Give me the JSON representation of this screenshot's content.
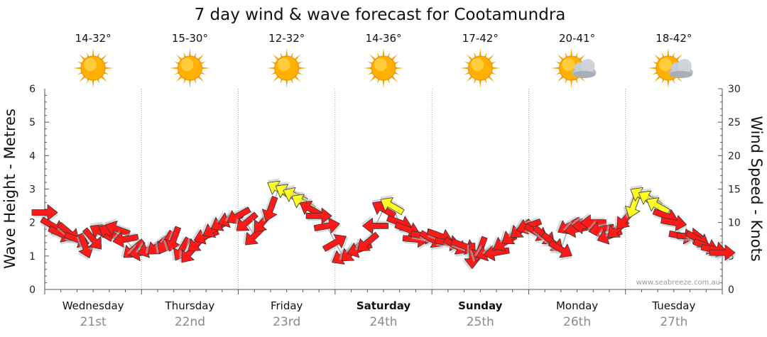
{
  "chart_data": {
    "type": "arrow-forecast",
    "title": "7 day wind & wave forecast for Cootamundra",
    "ylabel_left": "Wave Height - Metres",
    "ylabel_right": "Wind Speed - Knots",
    "ylim_left": [
      0,
      6
    ],
    "ylim_right": [
      0,
      30
    ],
    "left_ticks": [
      "0",
      "1",
      "2",
      "3",
      "4",
      "5",
      "6"
    ],
    "right_ticks": [
      "0",
      "5",
      "10",
      "15",
      "20",
      "25",
      "30"
    ],
    "credit": "www.seabreeze.com.au",
    "colors": {
      "wind": "#ff1a1a",
      "strong_wind": "#ffff26",
      "outline": "#333333",
      "grid": "#999999"
    },
    "days": [
      {
        "name": "Wednesday",
        "date": "21st",
        "temp": "14-32°",
        "weather": "sunny",
        "bold": false
      },
      {
        "name": "Thursday",
        "date": "22nd",
        "temp": "15-30°",
        "weather": "sunny",
        "bold": false
      },
      {
        "name": "Friday",
        "date": "23rd",
        "temp": "12-32°",
        "weather": "sunny",
        "bold": false
      },
      {
        "name": "Saturday",
        "date": "24th",
        "temp": "14-36°",
        "weather": "sunny",
        "bold": true
      },
      {
        "name": "Sunday",
        "date": "25th",
        "temp": "17-42°",
        "weather": "sunny",
        "bold": true
      },
      {
        "name": "Monday",
        "date": "26th",
        "temp": "20-41°",
        "weather": "partly-cloudy",
        "bold": false
      },
      {
        "name": "Tuesday",
        "date": "27th",
        "temp": "18-42°",
        "weather": "partly-cloudy",
        "bold": false
      }
    ],
    "wind": [
      {
        "t": 0.0,
        "s": 11.5,
        "d": 90
      },
      {
        "t": 0.5,
        "s": 9.5,
        "d": 120
      },
      {
        "t": 1.0,
        "s": 8.3,
        "d": 115
      },
      {
        "t": 1.5,
        "s": 8.5,
        "d": 130
      },
      {
        "t": 2.0,
        "s": 7.5,
        "d": 110
      },
      {
        "t": 2.5,
        "s": 6.5,
        "d": 160
      },
      {
        "t": 3.0,
        "s": 7.5,
        "d": 140
      },
      {
        "t": 3.5,
        "s": 8.5,
        "d": 300
      },
      {
        "t": 4.0,
        "s": 8.5,
        "d": 300
      },
      {
        "t": 4.5,
        "s": 9.0,
        "d": 290
      },
      {
        "t": 5.0,
        "s": 7.5,
        "d": 260
      },
      {
        "t": 5.5,
        "s": 6.0,
        "d": 230
      },
      {
        "t": 6.0,
        "s": 5.5,
        "d": 260
      },
      {
        "t": 6.5,
        "s": 6.0,
        "d": 250
      },
      {
        "t": 7.0,
        "s": 6.5,
        "d": 230
      },
      {
        "t": 7.5,
        "s": 7.0,
        "d": 210
      },
      {
        "t": 8.0,
        "s": 7.5,
        "d": 200
      },
      {
        "t": 8.5,
        "s": 6.0,
        "d": 210
      },
      {
        "t": 9.0,
        "s": 5.5,
        "d": 220
      },
      {
        "t": 9.5,
        "s": 7.0,
        "d": 230
      },
      {
        "t": 10.0,
        "s": 8.0,
        "d": 250
      },
      {
        "t": 10.5,
        "s": 9.0,
        "d": 240
      },
      {
        "t": 11.0,
        "s": 10.0,
        "d": 240
      },
      {
        "t": 11.5,
        "s": 10.5,
        "d": 250
      },
      {
        "t": 12.0,
        "s": 11.0,
        "d": 240
      },
      {
        "t": 12.5,
        "s": 10.0,
        "d": 230
      },
      {
        "t": 13.0,
        "s": 8.0,
        "d": 225
      },
      {
        "t": 13.5,
        "s": 10.0,
        "d": 220
      },
      {
        "t": 14.0,
        "s": 12.0,
        "d": 200
      },
      {
        "t": 14.5,
        "s": 15.0,
        "d": 300
      },
      {
        "t": 15.0,
        "s": 14.5,
        "d": 300
      },
      {
        "t": 15.5,
        "s": 14.0,
        "d": 295
      },
      {
        "t": 16.0,
        "s": 13.0,
        "d": 300
      },
      {
        "t": 16.5,
        "s": 12.0,
        "d": 300
      },
      {
        "t": 17.0,
        "s": 11.0,
        "d": 90
      },
      {
        "t": 17.5,
        "s": 9.5,
        "d": 80
      },
      {
        "t": 18.0,
        "s": 7.0,
        "d": 60
      },
      {
        "t": 18.5,
        "s": 5.0,
        "d": 240
      },
      {
        "t": 19.0,
        "s": 5.5,
        "d": 230
      },
      {
        "t": 19.5,
        "s": 6.0,
        "d": 250
      },
      {
        "t": 20.0,
        "s": 7.0,
        "d": 230
      },
      {
        "t": 20.5,
        "s": 9.5,
        "d": 270
      },
      {
        "t": 21.0,
        "s": 12.0,
        "d": 300
      },
      {
        "t": 21.5,
        "s": 12.5,
        "d": 300
      },
      {
        "t": 22.0,
        "s": 10.0,
        "d": 110
      },
      {
        "t": 22.5,
        "s": 9.0,
        "d": 110
      },
      {
        "t": 23.0,
        "s": 7.5,
        "d": 95
      },
      {
        "t": 23.5,
        "s": 8.0,
        "d": 100
      },
      {
        "t": 24.0,
        "s": 7.5,
        "d": 120
      },
      {
        "t": 24.5,
        "s": 8.0,
        "d": 110
      },
      {
        "t": 25.0,
        "s": 7.0,
        "d": 100
      },
      {
        "t": 25.5,
        "s": 6.5,
        "d": 120
      },
      {
        "t": 26.0,
        "s": 6.5,
        "d": 110
      },
      {
        "t": 26.5,
        "s": 5.0,
        "d": 180
      },
      {
        "t": 27.0,
        "s": 6.0,
        "d": 200
      },
      {
        "t": 27.5,
        "s": 5.5,
        "d": 250
      },
      {
        "t": 28.0,
        "s": 5.5,
        "d": 260
      },
      {
        "t": 28.5,
        "s": 7.0,
        "d": 240
      },
      {
        "t": 29.0,
        "s": 8.0,
        "d": 235
      },
      {
        "t": 29.5,
        "s": 9.0,
        "d": 230
      },
      {
        "t": 30.0,
        "s": 9.5,
        "d": 250
      },
      {
        "t": 30.5,
        "s": 8.5,
        "d": 120
      },
      {
        "t": 31.0,
        "s": 8.0,
        "d": 130
      },
      {
        "t": 31.5,
        "s": 7.0,
        "d": 130
      },
      {
        "t": 32.0,
        "s": 6.0,
        "d": 120
      },
      {
        "t": 32.5,
        "s": 9.5,
        "d": 240
      },
      {
        "t": 33.0,
        "s": 9.0,
        "d": 260
      },
      {
        "t": 33.5,
        "s": 9.5,
        "d": 270
      },
      {
        "t": 34.0,
        "s": 10.0,
        "d": 270
      },
      {
        "t": 34.5,
        "s": 9.0,
        "d": 260
      },
      {
        "t": 35.0,
        "s": 8.0,
        "d": 250
      },
      {
        "t": 35.5,
        "s": 9.0,
        "d": 230
      },
      {
        "t": 36.0,
        "s": 10.5,
        "d": 220
      },
      {
        "t": 36.5,
        "s": 12.5,
        "d": 200
      },
      {
        "t": 37.0,
        "s": 14.0,
        "d": 300
      },
      {
        "t": 37.5,
        "s": 13.5,
        "d": 300
      },
      {
        "t": 38.0,
        "s": 12.5,
        "d": 300
      },
      {
        "t": 38.5,
        "s": 11.0,
        "d": 110
      },
      {
        "t": 39.0,
        "s": 10.0,
        "d": 100
      },
      {
        "t": 39.5,
        "s": 8.0,
        "d": 100
      },
      {
        "t": 40.0,
        "s": 8.0,
        "d": 90
      },
      {
        "t": 40.5,
        "s": 7.5,
        "d": 120
      },
      {
        "t": 41.0,
        "s": 6.5,
        "d": 110
      },
      {
        "t": 41.5,
        "s": 6.0,
        "d": 100
      },
      {
        "t": 42.0,
        "s": 5.5,
        "d": 90
      }
    ]
  }
}
